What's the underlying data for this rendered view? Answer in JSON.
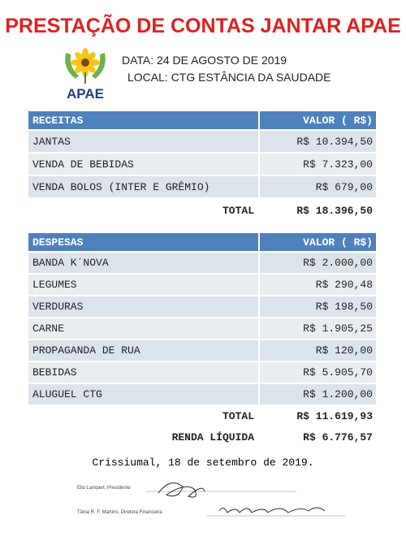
{
  "header": {
    "title": "PRESTAÇÃO DE CONTAS JANTAR APAE",
    "logo_text": "APAE",
    "date": "DATA: 24 DE AGOSTO DE 2019",
    "location": "LOCAL: CTG ESTÂNCIA DA SAUDADE"
  },
  "receitas": {
    "header": [
      "RECEITAS",
      "VALOR  ( R$)"
    ],
    "rows": [
      [
        "JANTAS",
        "R$ 10.394,50"
      ],
      [
        "VENDA DE BEBIDAS",
        "R$ 7.323,00"
      ],
      [
        "VENDA BOLOS (INTER E GRÊMIO)",
        "R$ 679,00"
      ]
    ],
    "total": [
      "TOTAL",
      "R$ 18.396,50"
    ]
  },
  "despesas": {
    "header": [
      "DESPESAS",
      "VALOR  ( R$)"
    ],
    "rows": [
      [
        "BANDA K´NOVA",
        "R$ 2.000,00"
      ],
      [
        "LEGUMES",
        "R$ 290,48"
      ],
      [
        "VERDURAS",
        "R$ 198,50"
      ],
      [
        "CARNE",
        "R$ 1.905,25"
      ],
      [
        "PROPAGANDA DE RUA",
        "R$ 120,00"
      ],
      [
        "BEBIDAS",
        "R$ 5.905,70"
      ],
      [
        "ALUGUEL CTG",
        "R$ 1.200,00"
      ]
    ],
    "total": [
      "TOTAL",
      "R$ 11.619,93"
    ],
    "net": [
      "RENDA LÍQUIDA",
      "R$ 6.776,57"
    ]
  },
  "footer": {
    "place_date": "Crissiumal, 18 de setembro de 2019.",
    "signatures": [
      "Elio Lampert, Presidente",
      "Tânia R. F. Martins, Diretora Financeira"
    ]
  }
}
